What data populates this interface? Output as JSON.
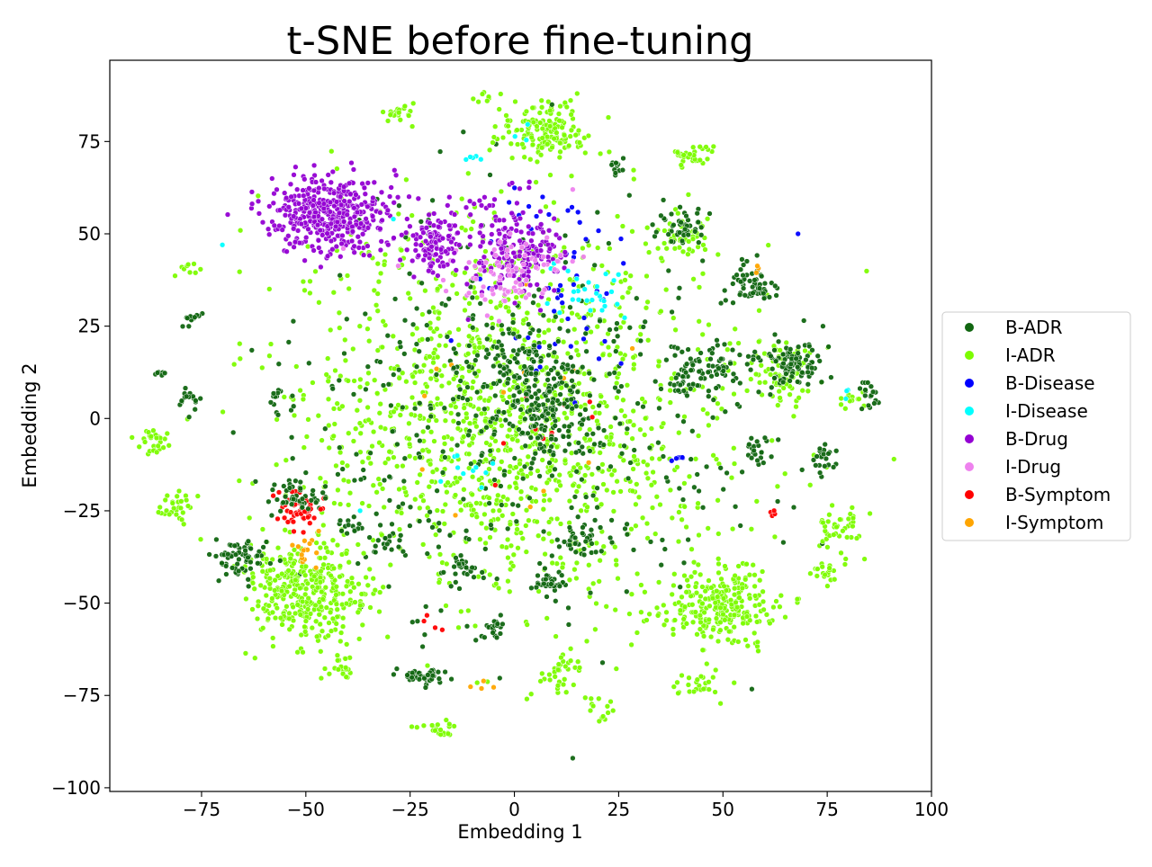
{
  "chart_data": {
    "type": "scatter",
    "title": "t-SNE before fine-tuning",
    "xlabel": "Embedding 1",
    "ylabel": "Embedding 2",
    "xlim": [
      -97,
      100
    ],
    "ylim": [
      -101,
      97
    ],
    "xticks": [
      -75,
      -50,
      -25,
      0,
      25,
      50,
      75,
      100
    ],
    "yticks": [
      -100,
      -75,
      -50,
      -25,
      0,
      25,
      50,
      75
    ],
    "legend_position": "right",
    "grid": false,
    "series": [
      {
        "name": "B-ADR",
        "color": "#116611"
      },
      {
        "name": "I-ADR",
        "color": "#7cfc00"
      },
      {
        "name": "B-Disease",
        "color": "#0000ff"
      },
      {
        "name": "I-Disease",
        "color": "#00ffff"
      },
      {
        "name": "B-Drug",
        "color": "#9400d3"
      },
      {
        "name": "I-Drug",
        "color": "#ee82ee"
      },
      {
        "name": "B-Symptom",
        "color": "#ff0000"
      },
      {
        "name": "I-Symptom",
        "color": "#ffa500"
      }
    ],
    "clusters": [
      {
        "series": "B-Drug",
        "cx": -44,
        "cy": 55,
        "sx": 7,
        "sy": 5,
        "n": 420
      },
      {
        "series": "B-Drug",
        "cx": -19,
        "cy": 48,
        "sx": 3,
        "sy": 4,
        "n": 120
      },
      {
        "series": "B-Drug",
        "cx": 1,
        "cy": 45,
        "sx": 6,
        "sy": 6,
        "n": 170
      },
      {
        "series": "B-Drug",
        "cx": -5,
        "cy": 57,
        "sx": 5,
        "sy": 3,
        "n": 20
      },
      {
        "series": "I-Drug",
        "cx": -3,
        "cy": 37,
        "sx": 6,
        "sy": 4,
        "n": 60
      },
      {
        "series": "I-Drug",
        "cx": 8,
        "cy": 42,
        "sx": 4,
        "sy": 3,
        "n": 18
      },
      {
        "series": "I-ADR",
        "cx": 6,
        "cy": 78,
        "sx": 5,
        "sy": 4,
        "n": 160
      },
      {
        "series": "I-ADR",
        "cx": -50,
        "cy": -47,
        "sx": 7,
        "sy": 7,
        "n": 330
      },
      {
        "series": "I-ADR",
        "cx": 50,
        "cy": -51,
        "sx": 7,
        "sy": 5,
        "n": 260
      },
      {
        "series": "I-ADR",
        "cx": -28,
        "cy": 83,
        "sx": 1.5,
        "sy": 1.3,
        "n": 22
      },
      {
        "series": "I-ADR",
        "cx": 42,
        "cy": 71,
        "sx": 2.5,
        "sy": 1.5,
        "n": 35
      },
      {
        "series": "I-ADR",
        "cx": -86,
        "cy": -6,
        "sx": 1.8,
        "sy": 2,
        "n": 30
      },
      {
        "series": "I-ADR",
        "cx": -81,
        "cy": -24,
        "sx": 1.8,
        "sy": 2,
        "n": 30
      },
      {
        "series": "I-ADR",
        "cx": 78,
        "cy": -30,
        "sx": 2.5,
        "sy": 3,
        "n": 40
      },
      {
        "series": "I-ADR",
        "cx": 75,
        "cy": -42,
        "sx": 2.5,
        "sy": 1.5,
        "n": 22
      },
      {
        "series": "I-ADR",
        "cx": -42,
        "cy": -67,
        "sx": 2,
        "sy": 1.5,
        "n": 22
      },
      {
        "series": "I-ADR",
        "cx": -17,
        "cy": -84,
        "sx": 3,
        "sy": 1,
        "n": 22
      },
      {
        "series": "I-ADR",
        "cx": 11,
        "cy": -69,
        "sx": 2.5,
        "sy": 2.5,
        "n": 30
      },
      {
        "series": "I-ADR",
        "cx": 45,
        "cy": -72,
        "sx": 3,
        "sy": 2,
        "n": 26
      },
      {
        "series": "I-ADR",
        "cx": -7,
        "cy": 87,
        "sx": 1,
        "sy": 0.8,
        "n": 8
      },
      {
        "series": "I-ADR",
        "cx": 64,
        "cy": 12,
        "sx": 4,
        "sy": 4,
        "n": 70
      },
      {
        "series": "I-ADR",
        "cx": 40,
        "cy": 50,
        "sx": 4,
        "sy": 3,
        "n": 45
      },
      {
        "series": "I-ADR",
        "cx": -78,
        "cy": 40,
        "sx": 1.5,
        "sy": 1.5,
        "n": 10
      },
      {
        "series": "I-ADR",
        "cx": -60,
        "cy": -40,
        "sx": 3,
        "sy": 3,
        "n": 20
      },
      {
        "series": "I-ADR",
        "cx": 19,
        "cy": -78,
        "sx": 2,
        "sy": 2,
        "n": 14
      },
      {
        "series": "I-ADR",
        "cx": -37,
        "cy": -48,
        "sx": 2,
        "sy": 2,
        "n": 12
      },
      {
        "series": "I-ADR",
        "cx": 80,
        "cy": 5,
        "sx": 2,
        "sy": 2,
        "n": 14
      },
      {
        "series": "I-ADR",
        "cx": 0,
        "cy": 0,
        "sx": 36,
        "sy": 36,
        "n": 1350
      },
      {
        "series": "B-ADR",
        "cx": 0,
        "cy": 0,
        "sx": 36,
        "sy": 36,
        "n": 430
      },
      {
        "series": "B-ADR",
        "cx": 7,
        "cy": 2,
        "sx": 5,
        "sy": 6,
        "n": 130
      },
      {
        "series": "B-ADR",
        "cx": 0,
        "cy": 15,
        "sx": 7,
        "sy": 6,
        "n": 110
      },
      {
        "series": "B-ADR",
        "cx": 66,
        "cy": 15,
        "sx": 4,
        "sy": 3.5,
        "n": 100
      },
      {
        "series": "B-ADR",
        "cx": 57,
        "cy": 36,
        "sx": 2.5,
        "sy": 3,
        "n": 55
      },
      {
        "series": "B-ADR",
        "cx": -66,
        "cy": -38,
        "sx": 3,
        "sy": 3,
        "n": 65
      },
      {
        "series": "B-ADR",
        "cx": -22,
        "cy": -70,
        "sx": 2.5,
        "sy": 1.5,
        "n": 42
      },
      {
        "series": "B-ADR",
        "cx": 41,
        "cy": 52,
        "sx": 3.5,
        "sy": 3,
        "n": 45
      },
      {
        "series": "B-ADR",
        "cx": -52,
        "cy": -21,
        "sx": 3,
        "sy": 2,
        "n": 45
      },
      {
        "series": "B-ADR",
        "cx": 8,
        "cy": -45,
        "sx": 2,
        "sy": 1.5,
        "n": 32
      },
      {
        "series": "B-ADR",
        "cx": 15,
        "cy": -33,
        "sx": 2.5,
        "sy": 2,
        "n": 32
      },
      {
        "series": "B-ADR",
        "cx": 47,
        "cy": 14,
        "sx": 4,
        "sy": 3,
        "n": 55
      },
      {
        "series": "B-ADR",
        "cx": -78,
        "cy": 5,
        "sx": 1.5,
        "sy": 1.5,
        "n": 16
      },
      {
        "series": "B-ADR",
        "cx": -85,
        "cy": 12,
        "sx": 0.7,
        "sy": 0.7,
        "n": 6
      },
      {
        "series": "B-ADR",
        "cx": -77,
        "cy": 27,
        "sx": 1.3,
        "sy": 1,
        "n": 14
      },
      {
        "series": "B-ADR",
        "cx": 85,
        "cy": 6,
        "sx": 1.5,
        "sy": 2,
        "n": 18
      },
      {
        "series": "B-ADR",
        "cx": 74,
        "cy": -11,
        "sx": 2,
        "sy": 2,
        "n": 22
      },
      {
        "series": "B-ADR",
        "cx": 25,
        "cy": 68,
        "sx": 1.3,
        "sy": 1.2,
        "n": 12
      },
      {
        "series": "B-ADR",
        "cx": -12,
        "cy": -40,
        "sx": 2,
        "sy": 2,
        "n": 25
      },
      {
        "series": "B-ADR",
        "cx": -5,
        "cy": -57,
        "sx": 2,
        "sy": 1.5,
        "n": 20
      },
      {
        "series": "B-ADR",
        "cx": 59,
        "cy": -8,
        "sx": 2,
        "sy": 2,
        "n": 22
      },
      {
        "series": "B-ADR",
        "cx": 41,
        "cy": 10,
        "sx": 2,
        "sy": 5,
        "n": 30
      },
      {
        "series": "B-ADR",
        "cx": -30,
        "cy": -33,
        "sx": 2,
        "sy": 2,
        "n": 15
      },
      {
        "series": "B-ADR",
        "cx": -39,
        "cy": -30,
        "sx": 2,
        "sy": 2,
        "n": 12
      },
      {
        "series": "B-ADR",
        "cx": -56,
        "cy": 6,
        "sx": 2,
        "sy": 3,
        "n": 14
      },
      {
        "series": "B-Disease",
        "cx": 12,
        "cy": 30,
        "sx": 10,
        "sy": 12,
        "n": 40
      },
      {
        "series": "B-Disease",
        "cx": 10,
        "cy": 55,
        "sx": 8,
        "sy": 4,
        "n": 10
      },
      {
        "series": "B-Disease",
        "cx": 39,
        "cy": -11,
        "sx": 1,
        "sy": 1,
        "n": 6
      },
      {
        "series": "I-Disease",
        "cx": 16,
        "cy": 33,
        "sx": 5,
        "sy": 5,
        "n": 28
      },
      {
        "series": "I-Disease",
        "cx": -10,
        "cy": -14,
        "sx": 5,
        "sy": 5,
        "n": 10
      },
      {
        "series": "I-Disease",
        "cx": -10,
        "cy": 70,
        "sx": 1.5,
        "sy": 1,
        "n": 5
      },
      {
        "series": "I-Disease",
        "cx": 2,
        "cy": 77,
        "sx": 1,
        "sy": 1,
        "n": 3
      },
      {
        "series": "I-Disease",
        "cx": 80,
        "cy": 7,
        "sx": 1,
        "sy": 1,
        "n": 3
      },
      {
        "series": "B-Symptom",
        "cx": -51,
        "cy": -25,
        "sx": 3,
        "sy": 2.5,
        "n": 55
      },
      {
        "series": "B-Symptom",
        "cx": 5,
        "cy": 0,
        "sx": 8,
        "sy": 8,
        "n": 12
      },
      {
        "series": "B-Symptom",
        "cx": 62,
        "cy": -26,
        "sx": 0.8,
        "sy": 0.8,
        "n": 4
      },
      {
        "series": "B-Symptom",
        "cx": -20,
        "cy": -55,
        "sx": 2,
        "sy": 2,
        "n": 4
      },
      {
        "series": "I-Symptom",
        "cx": -50,
        "cy": -36,
        "sx": 2,
        "sy": 2,
        "n": 16
      },
      {
        "series": "I-Symptom",
        "cx": 0,
        "cy": 5,
        "sx": 15,
        "sy": 15,
        "n": 14
      },
      {
        "series": "I-Symptom",
        "cx": -7,
        "cy": -73,
        "sx": 2,
        "sy": 1,
        "n": 4
      },
      {
        "series": "I-Symptom",
        "cx": 58,
        "cy": 40,
        "sx": 1,
        "sy": 1,
        "n": 3
      }
    ],
    "outliers": [
      {
        "series": "B-ADR",
        "x": 14,
        "y": -92
      },
      {
        "series": "B-ADR",
        "x": 9,
        "y": 85
      },
      {
        "series": "I-ADR",
        "x": 91,
        "y": -11
      },
      {
        "series": "I-Drug",
        "x": 14,
        "y": 62
      },
      {
        "series": "I-Drug",
        "x": -41,
        "y": 46
      },
      {
        "series": "I-Disease",
        "x": -29,
        "y": 54
      },
      {
        "series": "I-Disease",
        "x": -37,
        "y": -25
      },
      {
        "series": "I-Disease",
        "x": -70,
        "y": 47
      },
      {
        "series": "B-Disease",
        "x": 68,
        "y": 50
      }
    ]
  }
}
